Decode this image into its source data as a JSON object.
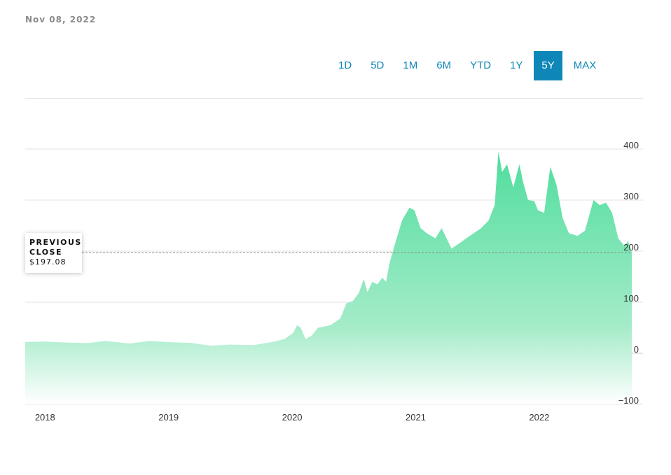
{
  "header": {
    "date": "Nov 08, 2022"
  },
  "range_tabs": [
    {
      "label": "1D",
      "active": false
    },
    {
      "label": "5D",
      "active": false
    },
    {
      "label": "1M",
      "active": false
    },
    {
      "label": "6M",
      "active": false
    },
    {
      "label": "YTD",
      "active": false
    },
    {
      "label": "1Y",
      "active": false
    },
    {
      "label": "5Y",
      "active": true
    },
    {
      "label": "MAX",
      "active": false
    }
  ],
  "previous_close": {
    "title": "PREVIOUS CLOSE",
    "value": "$197.08",
    "price": 197.08
  },
  "colors": {
    "accent": "#0f86b8",
    "area": "#4fdd9d",
    "area_light": "#a6ecca"
  },
  "chart_data": {
    "type": "area",
    "title": "",
    "xlabel": "",
    "ylabel": "",
    "xlim": [
      2017.95,
      2022.95
    ],
    "ylim": [
      -100,
      400
    ],
    "y_ticks": [
      {
        "value": 400,
        "label": "400"
      },
      {
        "value": 300,
        "label": "300"
      },
      {
        "value": 200,
        "label": "200"
      },
      {
        "value": 100,
        "label": "100"
      },
      {
        "value": 0,
        "label": "0"
      },
      {
        "value": -100,
        "label": "−100"
      }
    ],
    "x_ticks": [
      {
        "value": 2018,
        "label": "2018"
      },
      {
        "value": 2019,
        "label": "2019"
      },
      {
        "value": 2020,
        "label": "2020"
      },
      {
        "value": 2021,
        "label": "2021"
      },
      {
        "value": 2022,
        "label": "2022"
      }
    ],
    "grid": true,
    "series": [
      {
        "points": [
          [
            2017.95,
            22
          ],
          [
            2018.1,
            23
          ],
          [
            2018.3,
            21
          ],
          [
            2018.45,
            20
          ],
          [
            2018.6,
            24
          ],
          [
            2018.8,
            19
          ],
          [
            2018.95,
            24
          ],
          [
            2019.1,
            22
          ],
          [
            2019.3,
            20
          ],
          [
            2019.45,
            15
          ],
          [
            2019.6,
            17
          ],
          [
            2019.8,
            16
          ],
          [
            2019.95,
            22
          ],
          [
            2020.05,
            28
          ],
          [
            2020.12,
            40
          ],
          [
            2020.15,
            55
          ],
          [
            2020.18,
            50
          ],
          [
            2020.2,
            38
          ],
          [
            2020.22,
            28
          ],
          [
            2020.27,
            35
          ],
          [
            2020.32,
            50
          ],
          [
            2020.42,
            55
          ],
          [
            2020.5,
            68
          ],
          [
            2020.55,
            98
          ],
          [
            2020.6,
            102
          ],
          [
            2020.65,
            118
          ],
          [
            2020.69,
            145
          ],
          [
            2020.72,
            120
          ],
          [
            2020.76,
            140
          ],
          [
            2020.8,
            135
          ],
          [
            2020.84,
            148
          ],
          [
            2020.87,
            140
          ],
          [
            2020.9,
            178
          ],
          [
            2020.95,
            220
          ],
          [
            2021.0,
            260
          ],
          [
            2021.06,
            285
          ],
          [
            2021.1,
            280
          ],
          [
            2021.15,
            245
          ],
          [
            2021.2,
            235
          ],
          [
            2021.27,
            225
          ],
          [
            2021.32,
            245
          ],
          [
            2021.37,
            220
          ],
          [
            2021.4,
            205
          ],
          [
            2021.46,
            215
          ],
          [
            2021.52,
            225
          ],
          [
            2021.58,
            235
          ],
          [
            2021.64,
            245
          ],
          [
            2021.7,
            260
          ],
          [
            2021.75,
            290
          ],
          [
            2021.78,
            395
          ],
          [
            2021.81,
            355
          ],
          [
            2021.85,
            370
          ],
          [
            2021.9,
            325
          ],
          [
            2021.95,
            370
          ],
          [
            2021.98,
            335
          ],
          [
            2022.02,
            300
          ],
          [
            2022.07,
            298
          ],
          [
            2022.1,
            280
          ],
          [
            2022.15,
            275
          ],
          [
            2022.2,
            365
          ],
          [
            2022.25,
            330
          ],
          [
            2022.3,
            265
          ],
          [
            2022.35,
            235
          ],
          [
            2022.42,
            230
          ],
          [
            2022.48,
            240
          ],
          [
            2022.55,
            300
          ],
          [
            2022.6,
            290
          ],
          [
            2022.65,
            295
          ],
          [
            2022.7,
            275
          ],
          [
            2022.75,
            225
          ],
          [
            2022.8,
            210
          ],
          [
            2022.83,
            220
          ],
          [
            2022.86,
            197
          ]
        ]
      }
    ]
  }
}
